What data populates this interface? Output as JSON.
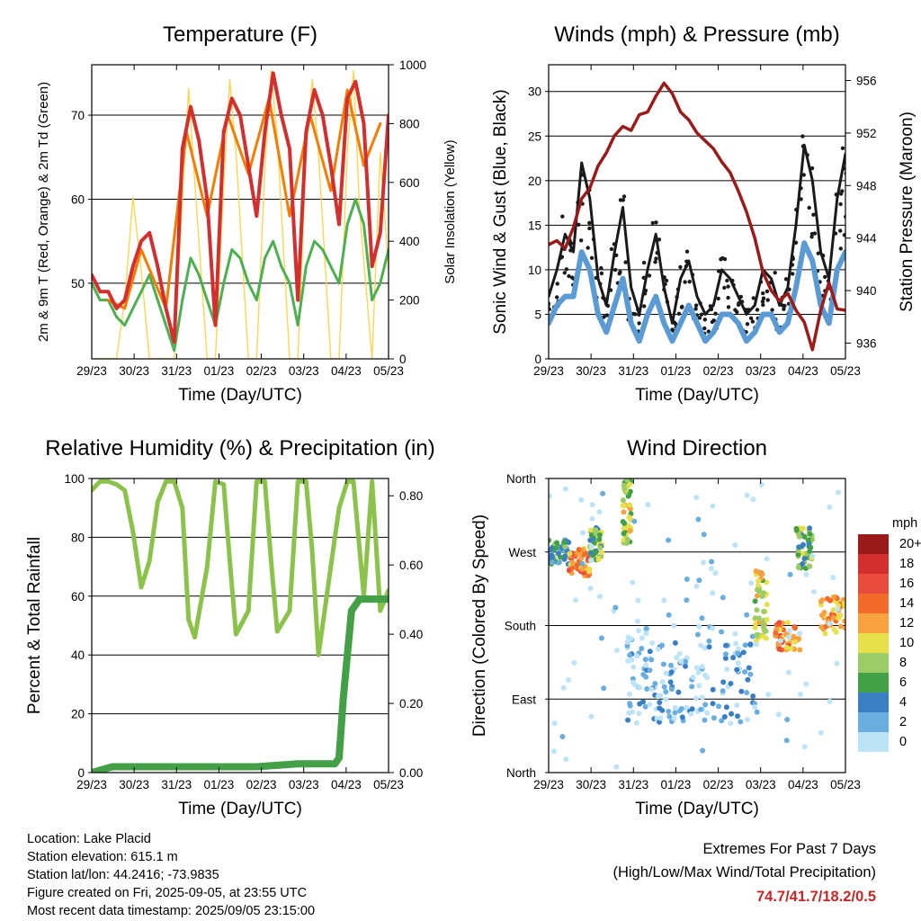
{
  "footer": {
    "location": "Location: Lake Placid",
    "elevation": "Station elevation: 615.1 m",
    "latlon": "Station lat/lon: 44.2416; -73.9835",
    "created": "Figure created on Fri, 2025-09-05, at 23:55 UTC",
    "recent": "Most recent data timestamp: 2025/09/05 23:15:00"
  },
  "extremes": {
    "title": "Extremes For Past 7 Days",
    "subtitle": "(High/Low/Max Wind/Total Precipitation)",
    "values": "74.7/41.7/18.2/0.5",
    "value_color": "#c62828"
  },
  "chart_data": [
    {
      "type": "line",
      "title": "Temperature (F)",
      "xlabel": "Time (Day/UTC)",
      "ylabel": "2m & 9m T (Red, Orange) & 2m Td (Green)",
      "y2label": "Solar Insolation (Yellow)",
      "x_ticks": [
        "29/23",
        "30/23",
        "31/23",
        "01/23",
        "02/23",
        "03/23",
        "04/23",
        "05/23"
      ],
      "xlim": [
        0,
        7.2
      ],
      "ylim": [
        41,
        76
      ],
      "y_ticks": [
        50,
        60,
        70
      ],
      "y2lim": [
        0,
        1000
      ],
      "y2_ticks": [
        0,
        200,
        400,
        600,
        800,
        1000
      ],
      "grid": true,
      "series": [
        {
          "color": "#d32f2f",
          "x": [
            0.0,
            0.2,
            0.4,
            0.6,
            0.8,
            1.0,
            1.2,
            1.4,
            1.6,
            1.8,
            2.0,
            2.2,
            2.4,
            2.6,
            2.8,
            3.0,
            3.2,
            3.4,
            3.6,
            3.8,
            4.0,
            4.2,
            4.4,
            4.6,
            4.8,
            5.0,
            5.2,
            5.4,
            5.6,
            5.8,
            6.0,
            6.2,
            6.4,
            6.6,
            6.8,
            7.0,
            7.2
          ],
          "y": [
            51,
            49,
            49,
            47,
            48,
            52,
            55,
            56,
            52,
            47,
            43,
            66,
            71,
            67,
            60,
            45,
            68,
            72,
            70,
            64,
            58,
            68,
            75,
            70,
            66,
            48,
            68,
            73,
            70,
            64,
            57,
            72,
            74,
            69,
            52,
            56,
            70
          ]
        },
        {
          "color": "#f57c00",
          "x": [
            0.4,
            0.8,
            1.2,
            1.8,
            2.3,
            2.8,
            3.3,
            3.8,
            4.3,
            4.8,
            5.3,
            5.8,
            6.2,
            6.6,
            7.0
          ],
          "y": [
            48,
            47,
            54,
            47,
            68,
            58,
            70,
            63,
            72,
            58,
            70,
            61,
            73,
            64,
            69
          ]
        },
        {
          "color": "#4caf50",
          "x": [
            0.0,
            0.2,
            0.4,
            0.6,
            0.8,
            1.0,
            1.2,
            1.4,
            1.6,
            1.8,
            2.0,
            2.2,
            2.4,
            2.6,
            2.8,
            3.0,
            3.2,
            3.4,
            3.6,
            3.8,
            4.0,
            4.2,
            4.4,
            4.6,
            4.8,
            5.0,
            5.2,
            5.4,
            5.6,
            5.8,
            6.0,
            6.2,
            6.4,
            6.6,
            6.8,
            7.0,
            7.2
          ],
          "y": [
            50,
            48,
            48,
            46,
            45,
            47,
            49,
            51,
            48,
            45,
            42,
            48,
            53,
            51,
            48,
            45,
            50,
            54,
            53,
            50,
            48,
            53,
            55,
            52,
            50,
            45,
            52,
            55,
            54,
            52,
            50,
            57,
            60,
            57,
            48,
            50,
            54
          ]
        }
      ],
      "series2": [
        {
          "color": "#ffd54f",
          "x": [
            0.0,
            0.3,
            0.6,
            0.8,
            1.0,
            1.2,
            1.4,
            1.6,
            1.8,
            2.0,
            2.2,
            2.35,
            2.5,
            2.8,
            3.0,
            3.2,
            3.35,
            3.5,
            3.8,
            4.0,
            4.2,
            4.35,
            4.5,
            4.8,
            5.0,
            5.2,
            5.35,
            5.5,
            5.8,
            6.0,
            6.2,
            6.35,
            6.5,
            6.8,
            7.0,
            7.2
          ],
          "y": [
            0,
            0,
            0,
            200,
            550,
            300,
            0,
            0,
            0,
            0,
            550,
            920,
            600,
            0,
            0,
            600,
            950,
            700,
            0,
            0,
            650,
            980,
            750,
            0,
            0,
            700,
            950,
            700,
            0,
            0,
            700,
            980,
            500,
            0,
            700,
            300
          ]
        }
      ]
    },
    {
      "type": "line",
      "title": "Winds (mph) & Pressure (mb)",
      "xlabel": "Time (Day/UTC)",
      "ylabel": "Sonic Wind & Gust (Blue, Black)",
      "y2label": "Station Pressure (Maroon)",
      "x_ticks": [
        "29/23",
        "30/23",
        "31/23",
        "01/23",
        "02/23",
        "03/23",
        "04/23",
        "05/23"
      ],
      "xlim": [
        0,
        7.2
      ],
      "ylim": [
        0,
        33
      ],
      "y_ticks": [
        0,
        5,
        10,
        15,
        20,
        25,
        30
      ],
      "y2lim": [
        934.8,
        957.2
      ],
      "y2_ticks": [
        936,
        940,
        944,
        948,
        952,
        956
      ],
      "grid": true,
      "series": [
        {
          "color": "#1a1a1a",
          "x": [
            0.0,
            0.2,
            0.4,
            0.6,
            0.8,
            1.0,
            1.2,
            1.4,
            1.6,
            1.8,
            2.0,
            2.2,
            2.4,
            2.6,
            2.8,
            3.0,
            3.2,
            3.4,
            3.6,
            3.8,
            4.0,
            4.2,
            4.4,
            4.6,
            4.8,
            5.0,
            5.2,
            5.4,
            5.6,
            5.8,
            6.0,
            6.2,
            6.4,
            6.6,
            6.8,
            7.0,
            7.2
          ],
          "y": [
            7,
            10,
            14,
            12,
            22,
            18,
            9,
            6,
            12,
            17,
            8,
            5,
            10,
            14,
            8,
            4,
            9,
            11,
            7,
            5,
            6,
            10,
            9,
            7,
            5,
            6,
            10,
            9,
            6,
            8,
            15,
            24,
            20,
            12,
            9,
            18,
            23
          ]
        },
        {
          "color": "#5b9bd5",
          "x": [
            0.0,
            0.2,
            0.4,
            0.6,
            0.8,
            1.0,
            1.2,
            1.4,
            1.6,
            1.8,
            2.0,
            2.2,
            2.4,
            2.6,
            2.8,
            3.0,
            3.2,
            3.4,
            3.6,
            3.8,
            4.0,
            4.2,
            4.4,
            4.6,
            4.8,
            5.0,
            5.2,
            5.4,
            5.6,
            5.8,
            6.0,
            6.2,
            6.4,
            6.6,
            6.8,
            7.0,
            7.2
          ],
          "y": [
            4,
            6,
            7,
            7,
            12,
            10,
            5,
            3,
            6,
            9,
            4,
            2,
            5,
            7,
            4,
            2,
            4,
            6,
            4,
            2,
            3,
            5,
            5,
            4,
            2,
            3,
            5,
            5,
            3,
            4,
            8,
            13,
            11,
            6,
            4,
            10,
            12
          ]
        }
      ],
      "series2": [
        {
          "color": "#9b1b1b",
          "x": [
            0.0,
            0.2,
            0.4,
            0.6,
            0.8,
            1.0,
            1.2,
            1.4,
            1.6,
            1.8,
            2.0,
            2.2,
            2.4,
            2.6,
            2.8,
            3.0,
            3.2,
            3.4,
            3.6,
            3.8,
            4.0,
            4.2,
            4.4,
            4.6,
            4.8,
            5.0,
            5.2,
            5.4,
            5.6,
            5.8,
            6.0,
            6.2,
            6.4,
            6.6,
            6.8,
            7.0,
            7.2
          ],
          "y": [
            943.5,
            943.8,
            943.2,
            944.8,
            947.0,
            947.8,
            949.5,
            950.5,
            951.8,
            952.5,
            952.2,
            953.4,
            953.6,
            954.8,
            955.8,
            955.0,
            953.6,
            953.0,
            952.0,
            951.4,
            950.8,
            949.8,
            949.0,
            947.6,
            946.0,
            944.0,
            941.4,
            940.0,
            939.2,
            939.8,
            938.5,
            937.6,
            935.5,
            938.5,
            940.6,
            938.6,
            938.5
          ]
        }
      ]
    },
    {
      "type": "line",
      "title": "Relative Humidity (%) & Precipitation (in)",
      "xlabel": "Time (Day/UTC)",
      "ylabel": "Percent & Total Rainfall",
      "x_ticks": [
        "29/23",
        "30/23",
        "31/23",
        "01/23",
        "02/23",
        "03/23",
        "04/23",
        "05/23"
      ],
      "xlim": [
        0,
        7.2
      ],
      "ylim": [
        0,
        100
      ],
      "y_ticks": [
        0,
        20,
        40,
        60,
        80,
        100
      ],
      "y2lim": [
        0,
        0.85
      ],
      "y2_ticks": [
        "0.00",
        "0.20",
        "0.40",
        "0.60",
        "0.80"
      ],
      "grid": true,
      "series": [
        {
          "color": "#8bc34a",
          "x": [
            0.0,
            0.2,
            0.4,
            0.6,
            0.8,
            1.0,
            1.2,
            1.4,
            1.6,
            1.8,
            2.0,
            2.2,
            2.35,
            2.5,
            2.8,
            3.0,
            3.2,
            3.35,
            3.5,
            3.8,
            4.0,
            4.2,
            4.35,
            4.5,
            4.8,
            5.0,
            5.2,
            5.35,
            5.5,
            5.8,
            6.0,
            6.2,
            6.35,
            6.6,
            6.8,
            7.0,
            7.2
          ],
          "y": [
            96,
            99,
            99,
            98,
            96,
            82,
            63,
            72,
            92,
            99,
            99,
            90,
            52,
            46,
            70,
            99,
            98,
            72,
            47,
            55,
            99,
            99,
            72,
            48,
            55,
            99,
            99,
            75,
            40,
            70,
            90,
            99,
            99,
            60,
            99,
            55,
            62
          ]
        },
        {
          "color": "#43a047",
          "x": [
            0.0,
            0.5,
            1.0,
            2.0,
            3.0,
            4.0,
            5.0,
            5.5,
            5.9,
            6.0,
            6.05,
            6.1,
            6.2,
            6.3,
            6.5,
            7.0,
            7.2
          ],
          "y": [
            0,
            2,
            2,
            2,
            2,
            2,
            3,
            3,
            3,
            5,
            15,
            25,
            40,
            55,
            59,
            59,
            59
          ]
        }
      ]
    },
    {
      "type": "scatter",
      "title": "Wind Direction",
      "xlabel": "Time (Day/UTC)",
      "ylabel": "Direction (Colored By Speed)",
      "x_ticks": [
        "29/23",
        "30/23",
        "31/23",
        "01/23",
        "02/23",
        "03/23",
        "04/23",
        "05/23"
      ],
      "xlim": [
        0,
        7.2
      ],
      "ylim": [
        0,
        360
      ],
      "y_tick_labels": [
        "North",
        "East",
        "South",
        "West",
        "North"
      ],
      "grid": true,
      "colorbar": {
        "label": "mph",
        "levels": [
          "20+",
          "18",
          "16",
          "14",
          "12",
          "10",
          "8",
          "6",
          "4",
          "2",
          "0"
        ],
        "colors": [
          "#9b1b1b",
          "#d32f2f",
          "#e84c3c",
          "#f26b2b",
          "#f9a03f",
          "#e8e04a",
          "#9ccc65",
          "#43a047",
          "#3a7fc4",
          "#6aaee0",
          "#bde3f7"
        ]
      },
      "clusters": [
        {
          "x0": 0.0,
          "x1": 0.5,
          "d0": 255,
          "d1": 285,
          "speed": 6
        },
        {
          "x0": 0.5,
          "x1": 1.0,
          "d0": 240,
          "d1": 275,
          "speed": 14
        },
        {
          "x0": 1.0,
          "x1": 1.3,
          "d0": 260,
          "d1": 300,
          "speed": 8
        },
        {
          "x0": 1.8,
          "x1": 2.0,
          "d0": 280,
          "d1": 360,
          "speed": 10
        },
        {
          "x0": 1.9,
          "x1": 2.5,
          "d0": 60,
          "d1": 180,
          "speed": 2
        },
        {
          "x0": 2.5,
          "x1": 3.2,
          "d0": 60,
          "d1": 160,
          "speed": 3
        },
        {
          "x0": 3.2,
          "x1": 4.2,
          "d0": 60,
          "d1": 180,
          "speed": 2
        },
        {
          "x0": 4.2,
          "x1": 5.0,
          "d0": 60,
          "d1": 170,
          "speed": 3
        },
        {
          "x0": 5.0,
          "x1": 5.3,
          "d0": 160,
          "d1": 250,
          "speed": 10
        },
        {
          "x0": 5.5,
          "x1": 6.1,
          "d0": 150,
          "d1": 185,
          "speed": 14
        },
        {
          "x0": 6.0,
          "x1": 6.4,
          "d0": 250,
          "d1": 300,
          "speed": 8
        },
        {
          "x0": 6.6,
          "x1": 7.2,
          "d0": 170,
          "d1": 215,
          "speed": 13
        },
        {
          "x0": 0.0,
          "x1": 7.2,
          "d0": 0,
          "d1": 360,
          "speed": 1
        }
      ]
    }
  ]
}
